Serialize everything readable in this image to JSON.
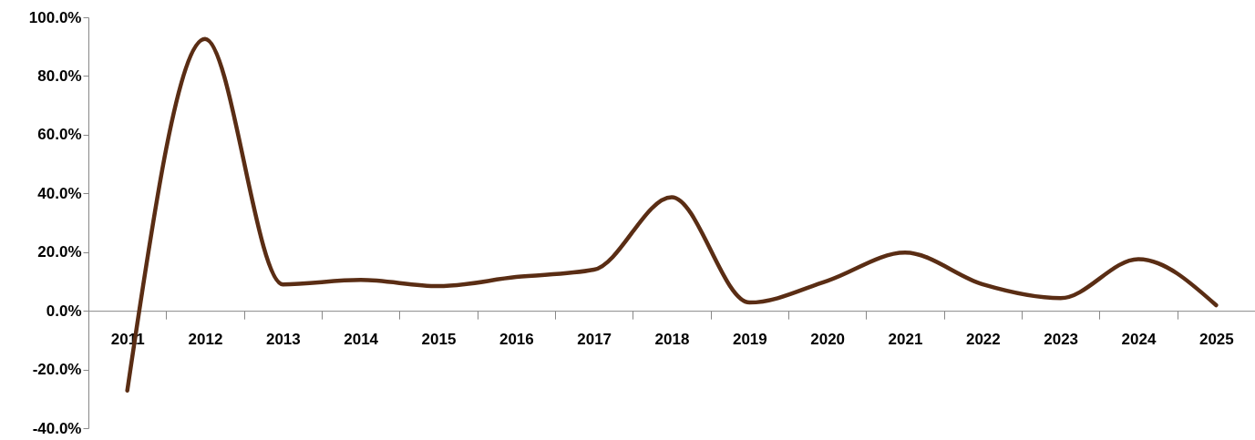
{
  "chart_data": {
    "type": "line",
    "categories": [
      "2011",
      "2012",
      "2013",
      "2014",
      "2015",
      "2016",
      "2017",
      "2018",
      "2019",
      "2020",
      "2021",
      "2022",
      "2023",
      "2024",
      "2025"
    ],
    "series": [
      {
        "color": "#5a2d14",
        "values": [
          -27.2,
          92.6,
          9,
          10.5,
          8.4,
          11.5,
          14,
          38.7,
          2.8,
          10.2,
          19.8,
          9,
          4.3,
          17.6,
          1.9
        ]
      }
    ],
    "ylim": [
      -40,
      100
    ],
    "yticks": [
      {
        "value": -40,
        "label": "-40.0%"
      },
      {
        "value": -20,
        "label": "-20.0%"
      },
      {
        "value": 0,
        "label": "0.0%"
      },
      {
        "value": 20,
        "label": "20.0%"
      },
      {
        "value": 40,
        "label": "40.0%"
      },
      {
        "value": 60,
        "label": "60.0%"
      },
      {
        "value": 80,
        "label": "80.0%"
      },
      {
        "value": 100,
        "label": "100.0%"
      }
    ],
    "grid": false,
    "marker": "none",
    "line_style": "solid"
  }
}
